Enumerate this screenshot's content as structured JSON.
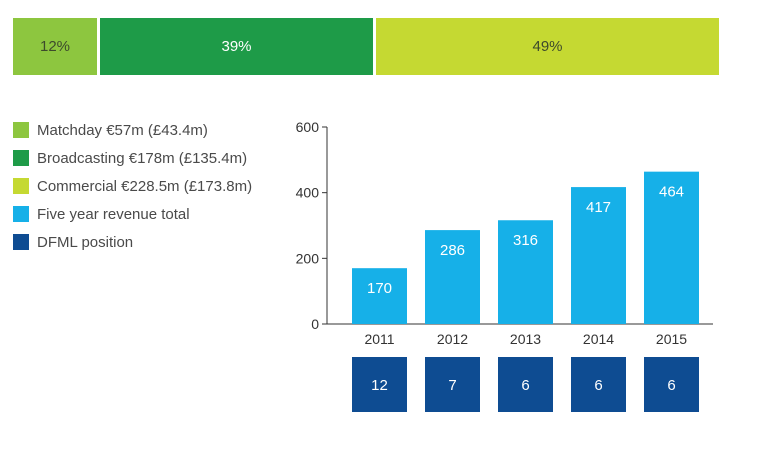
{
  "revenue_split": [
    {
      "label": "12%",
      "share": 12,
      "color": "#8dc63f",
      "dark_text": false
    },
    {
      "label": "39%",
      "share": 39,
      "color": "#1e9b48",
      "dark_text": true
    },
    {
      "label": "49%",
      "share": 49,
      "color": "#c5d932",
      "dark_text": false
    }
  ],
  "legend": [
    {
      "label": "Matchday €57m (£43.4m)",
      "color": "#8dc63f"
    },
    {
      "label": "Broadcasting €178m (£135.4m)",
      "color": "#1e9b48"
    },
    {
      "label": "Commercial €228.5m (£173.8m)",
      "color": "#c5d932"
    },
    {
      "label": "Five year revenue total",
      "color": "#16b0e8"
    },
    {
      "label": "DFML position",
      "color": "#0e4c92"
    }
  ],
  "chart_data": {
    "type": "bar",
    "categories": [
      "2011",
      "2012",
      "2013",
      "2014",
      "2015"
    ],
    "values": [
      170,
      286,
      316,
      417,
      464
    ],
    "bar_color": "#16b0e8",
    "ylim": [
      0,
      600
    ],
    "yticks": [
      0,
      200,
      400,
      600
    ],
    "xlabel": "",
    "ylabel": "",
    "dfml_positions": [
      "12",
      "7",
      "6",
      "6",
      "6"
    ],
    "dfml_color": "#0e4c92",
    "grid": false
  }
}
